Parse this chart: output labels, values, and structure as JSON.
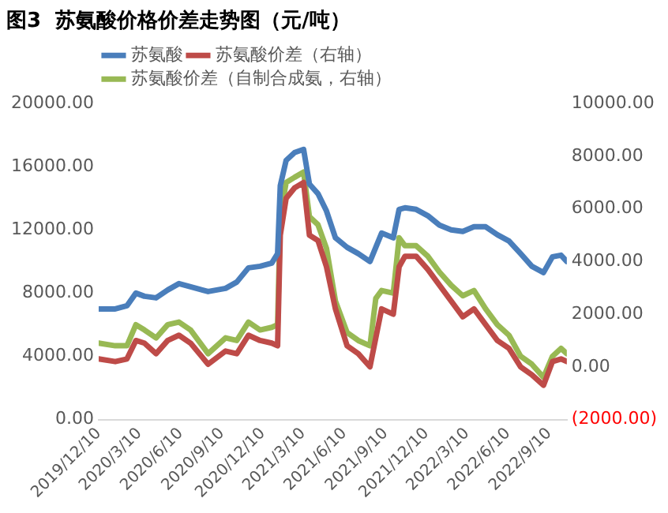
{
  "chart_data": {
    "type": "line",
    "title": "图3  苏氨酸价格价差走势图（元/吨）",
    "x": [
      "2019-12-10",
      "2020-01-16",
      "2020-02-11",
      "2020-03-02",
      "2020-03-21",
      "2020-04-16",
      "2020-05-12",
      "2020-06-06",
      "2020-07-02",
      "2020-08-10",
      "2020-09-18",
      "2020-10-13",
      "2020-11-08",
      "2020-12-04",
      "2020-12-30",
      "2021-01-12",
      "2021-01-18",
      "2021-01-31",
      "2021-02-19",
      "2021-03-11",
      "2021-03-24",
      "2021-04-12",
      "2021-05-01",
      "2021-05-21",
      "2021-06-16",
      "2021-07-11",
      "2021-08-06",
      "2021-08-19",
      "2021-09-01",
      "2021-09-27",
      "2021-10-10",
      "2021-10-23",
      "2021-11-17",
      "2021-12-13",
      "2022-01-08",
      "2022-02-03",
      "2022-03-01",
      "2022-03-26",
      "2022-04-21",
      "2022-05-17",
      "2022-06-12",
      "2022-07-08",
      "2022-08-02",
      "2022-08-28",
      "2022-09-17",
      "2022-10-06",
      "2022-10-19"
    ],
    "series": [
      {
        "name": "苏氨酸",
        "color": "#4a7ebb",
        "values": [
          7000,
          7000,
          7200,
          8000,
          7800,
          7700,
          8200,
          8600,
          8400,
          8100,
          8300,
          8700,
          9600,
          9700,
          9900,
          10500,
          14800,
          16400,
          16900,
          17100,
          14900,
          14300,
          13200,
          11500,
          10900,
          10500,
          10000,
          10900,
          11800,
          11500,
          13300,
          13400,
          13300,
          12900,
          12300,
          12000,
          11900,
          12200,
          12200,
          11700,
          11300,
          10500,
          9700,
          9300,
          10300,
          10400,
          10000
        ]
      },
      {
        "name": "苏氨酸价差（右轴）",
        "color": "#be4b48",
        "axis": "y2",
        "values": [
          300,
          200,
          300,
          1000,
          900,
          500,
          1000,
          1200,
          900,
          100,
          600,
          500,
          1200,
          1000,
          900,
          800,
          5000,
          6400,
          6800,
          7000,
          5000,
          4800,
          3800,
          2200,
          800,
          500,
          0,
          1100,
          2200,
          2000,
          3800,
          4200,
          4200,
          3700,
          3100,
          2500,
          1900,
          2200,
          1600,
          1000,
          700,
          0,
          -300,
          -700,
          200,
          300,
          200
        ]
      },
      {
        "name": "苏氨酸价差（自制合成氨，右轴）",
        "color": "#98b954",
        "axis": "y2",
        "values": [
          900,
          800,
          800,
          1600,
          1400,
          1100,
          1600,
          1700,
          1400,
          500,
          1100,
          1000,
          1700,
          1400,
          1500,
          1600,
          5700,
          7000,
          7200,
          7400,
          5700,
          5400,
          4500,
          2500,
          1300,
          1000,
          800,
          2600,
          2900,
          2800,
          4900,
          4600,
          4600,
          4200,
          3600,
          3100,
          2700,
          2900,
          2200,
          1600,
          1200,
          400,
          100,
          -400,
          400,
          700,
          500
        ]
      }
    ],
    "xlim": [
      "2019-12-10",
      "2022-10-19"
    ],
    "xticks": [
      {
        "value": "2019-12-10",
        "label": "2019/12/10"
      },
      {
        "value": "2020-03-10",
        "label": "2020/3/10"
      },
      {
        "value": "2020-06-10",
        "label": "2020/6/10"
      },
      {
        "value": "2020-09-10",
        "label": "2020/9/10"
      },
      {
        "value": "2020-12-10",
        "label": "2020/12/10"
      },
      {
        "value": "2021-03-10",
        "label": "2021/3/10"
      },
      {
        "value": "2021-06-10",
        "label": "2021/6/10"
      },
      {
        "value": "2021-09-10",
        "label": "2021/9/10"
      },
      {
        "value": "2021-12-10",
        "label": "2021/12/10"
      },
      {
        "value": "2022-03-10",
        "label": "2022/3/10"
      },
      {
        "value": "2022-06-10",
        "label": "2022/6/10"
      },
      {
        "value": "2022-09-10",
        "label": "2022/9/10"
      }
    ],
    "ylim": [
      0,
      20000
    ],
    "yticks": [
      {
        "value": 0,
        "label": "0.00"
      },
      {
        "value": 4000,
        "label": "4000.00"
      },
      {
        "value": 8000,
        "label": "8000.00"
      },
      {
        "value": 12000,
        "label": "12000.00"
      },
      {
        "value": 16000,
        "label": "16000.00"
      },
      {
        "value": 20000,
        "label": "20000.00"
      }
    ],
    "y2lim": [
      -2000,
      10000
    ],
    "y2ticks": [
      {
        "value": -2000,
        "label": "(2000.00)"
      },
      {
        "value": 0,
        "label": "0.00"
      },
      {
        "value": 2000,
        "label": "2000.00"
      },
      {
        "value": 4000,
        "label": "4000.00"
      },
      {
        "value": 6000,
        "label": "6000.00"
      },
      {
        "value": 8000,
        "label": "8000.00"
      },
      {
        "value": 10000,
        "label": "10000.00"
      }
    ],
    "grid": false,
    "legend": "top left",
    "marker": "none",
    "line_style": "solid"
  }
}
